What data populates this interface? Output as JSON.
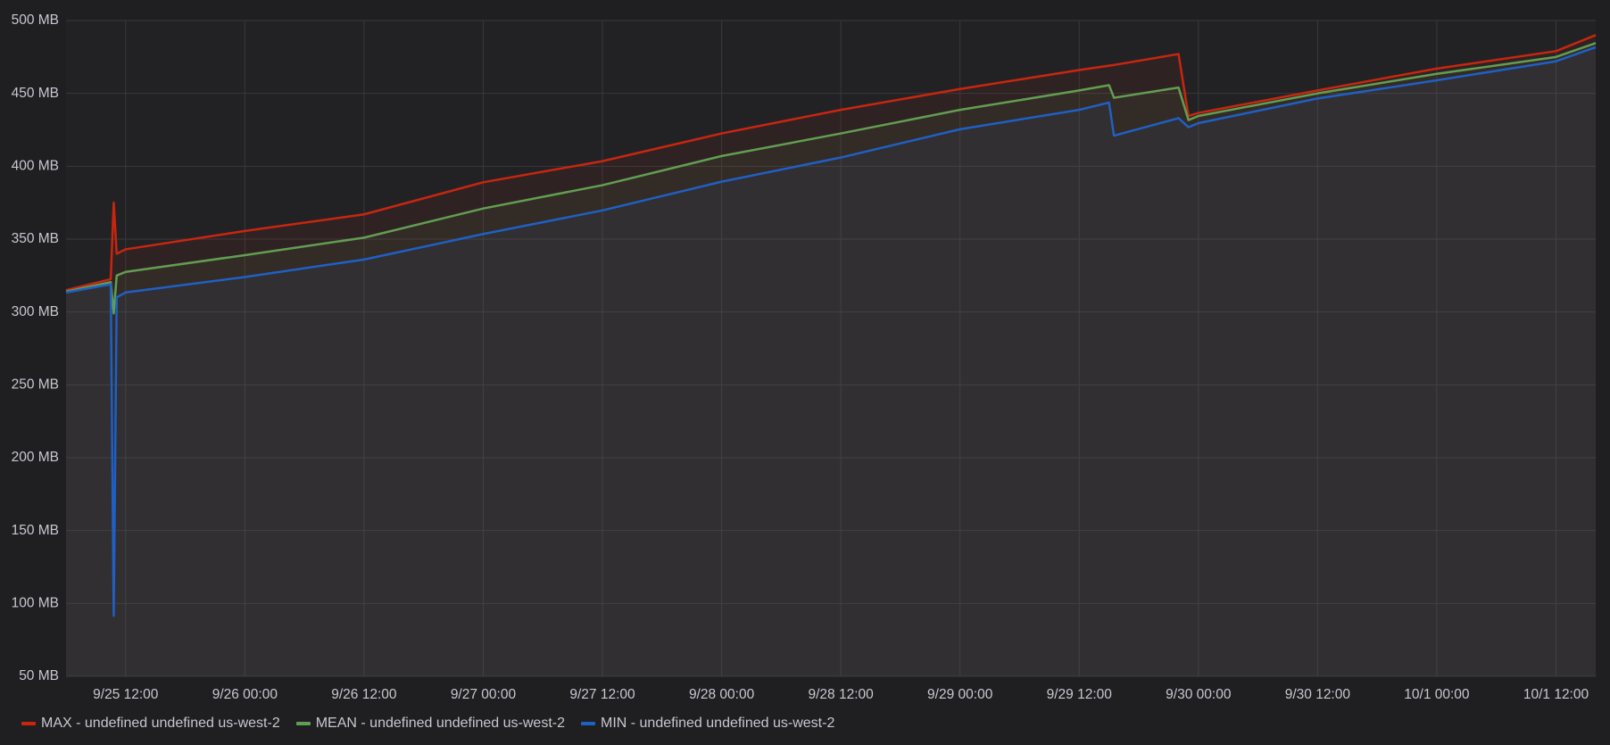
{
  "chart_data": {
    "type": "line",
    "x": [
      "9/25 06:00",
      "9/25 10:30",
      "9/25 10:48",
      "9/25 11:06",
      "9/25 12:00",
      "9/26 00:00",
      "9/26 12:00",
      "9/27 00:00",
      "9/27 12:00",
      "9/28 00:00",
      "9/28 12:00",
      "9/29 00:00",
      "9/29 12:00",
      "9/29 15:00",
      "9/29 15:30",
      "9/29 22:00",
      "9/29 23:00",
      "9/30 00:00",
      "9/30 12:00",
      "10/1 00:00",
      "10/1 12:00",
      "10/1 16:00"
    ],
    "series": [
      {
        "name": "MAX - undefined undefined us-west-2",
        "color": "#c8260f",
        "values": [
          315,
          322.5,
          375,
          340,
          343,
          355.6,
          367,
          389,
          403.5,
          422.5,
          438.7,
          453,
          466,
          469,
          469.5,
          477,
          434.5,
          436.6,
          452,
          467,
          479,
          490
        ]
      },
      {
        "name": "MEAN - undefined undefined us-west-2",
        "color": "#629e51",
        "values": [
          314,
          320.5,
          299,
          325,
          327.5,
          339,
          351,
          371,
          387,
          407,
          422.5,
          438.7,
          452,
          455.6,
          447,
          454,
          431.7,
          434.5,
          450,
          463.4,
          475,
          484.5
        ]
      },
      {
        "name": "MIN - undefined undefined us-west-2",
        "color": "#1f60c4",
        "values": [
          313.4,
          319,
          91.5,
          310,
          313.4,
          324,
          336,
          353.5,
          369.7,
          389.4,
          406,
          425.4,
          438.7,
          443.7,
          421,
          433,
          426.8,
          429.6,
          446.5,
          459,
          472,
          481.7
        ]
      }
    ],
    "xlim": [
      "9/25 06:00",
      "10/1 16:00"
    ],
    "xticks": [
      "9/25 12:00",
      "9/26 00:00",
      "9/26 12:00",
      "9/27 00:00",
      "9/27 12:00",
      "9/28 00:00",
      "9/28 12:00",
      "9/29 00:00",
      "9/29 12:00",
      "9/30 00:00",
      "9/30 12:00",
      "10/1 00:00",
      "10/1 12:00"
    ],
    "ylim": [
      50,
      500
    ],
    "yticks": [
      {
        "value": 50,
        "label": "50 MB"
      },
      {
        "value": 100,
        "label": "100 MB"
      },
      {
        "value": 150,
        "label": "150 MB"
      },
      {
        "value": 200,
        "label": "200 MB"
      },
      {
        "value": 250,
        "label": "250 MB"
      },
      {
        "value": 300,
        "label": "300 MB"
      },
      {
        "value": 350,
        "label": "350 MB"
      },
      {
        "value": 400,
        "label": "400 MB"
      },
      {
        "value": 450,
        "label": "450 MB"
      },
      {
        "value": 500,
        "label": "500 MB"
      }
    ],
    "grid": true,
    "legend": "bottom-left"
  }
}
